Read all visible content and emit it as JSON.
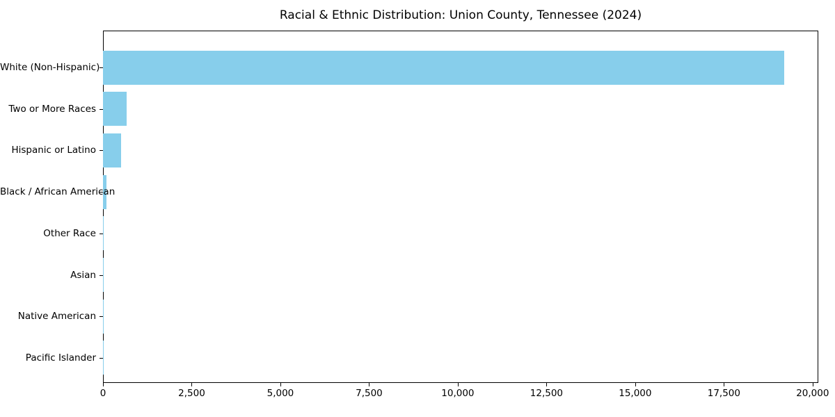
{
  "chart_data": {
    "type": "bar",
    "orientation": "horizontal",
    "title": "Racial & Ethnic Distribution: Union County, Tennessee (2024)",
    "categories": [
      "White (Non-Hispanic)",
      "Two or More Races",
      "Hispanic or Latino",
      "Black / African American",
      "Other Race",
      "Asian",
      "Native American",
      "Pacific Islander"
    ],
    "values": [
      19200,
      660,
      515,
      100,
      20,
      15,
      10,
      5
    ],
    "xlabel": "",
    "ylabel": "",
    "xlim": [
      0,
      20160
    ],
    "x_ticks": [
      0,
      2500,
      5000,
      7500,
      10000,
      12500,
      15000,
      17500,
      20000
    ],
    "x_tick_labels": [
      "0",
      "2,500",
      "5,000",
      "7,500",
      "10,000",
      "12,500",
      "15,000",
      "17,500",
      "20,000"
    ],
    "bar_color": "#87CEEB",
    "grid": false,
    "legend": null,
    "frame": "full-box"
  }
}
